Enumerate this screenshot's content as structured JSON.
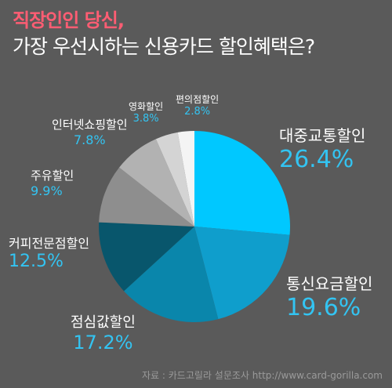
{
  "header": {
    "title_line1": "직장인인 당신,",
    "title_line2": "가장 우선시하는 신용카드 할인혜택은?"
  },
  "colors": {
    "background": "#5a5a5a",
    "title_accent": "#ff5d73",
    "percent_text": "#33c4f2"
  },
  "chart_data": {
    "type": "pie",
    "title": "가장 우선시하는 신용카드 할인혜택은?",
    "unit": "%",
    "slices": [
      {
        "label": "대중교통할인",
        "value": 26.4,
        "display": "26.4%",
        "color": "#00c8ff"
      },
      {
        "label": "통신요금할인",
        "value": 19.6,
        "display": "19.6%",
        "color": "#0f9ecc"
      },
      {
        "label": "점심값할인",
        "value": 17.2,
        "display": "17.2%",
        "color": "#0a86ab"
      },
      {
        "label": "커피전문점할인",
        "value": 12.5,
        "display": "12.5%",
        "color": "#08566c"
      },
      {
        "label": "주유할인",
        "value": 9.9,
        "display": "9.9%",
        "color": "#8e8e8e"
      },
      {
        "label": "인터넷쇼핑할인",
        "value": 7.8,
        "display": "7.8%",
        "color": "#b2b2b2"
      },
      {
        "label": "영화할인",
        "value": 3.8,
        "display": "3.8%",
        "color": "#d4d4d4"
      },
      {
        "label": "편의점할인",
        "value": 2.8,
        "display": "2.8%",
        "color": "#f4f4f4"
      }
    ]
  },
  "source": "자료 : 카드고릴라 설문조사 http://www.card-gorilla.com"
}
